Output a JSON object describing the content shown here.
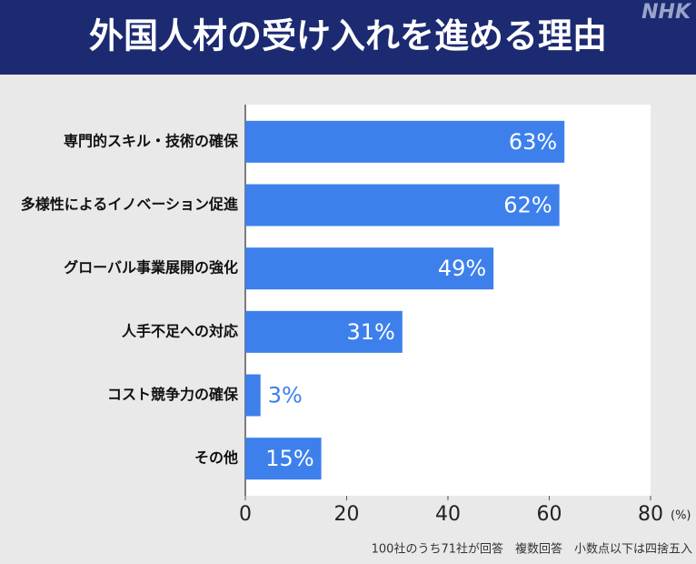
{
  "header": {
    "title": "外国人材の受け入れを進める理由",
    "logo": "NHK"
  },
  "chart_data": {
    "type": "barh",
    "categories": [
      "専門的スキル・技術の確保",
      "多様性によるイノベーション促進",
      "グローバル事業展開の強化",
      "人手不足への対応",
      "コスト競争力の確保",
      "その他"
    ],
    "values": [
      63,
      62,
      49,
      31,
      3,
      15
    ],
    "value_labels": [
      "63%",
      "62%",
      "49%",
      "31%",
      "3%",
      "15%"
    ],
    "color": "#3d80ec",
    "xlim": [
      0,
      80
    ],
    "xticks": [
      0,
      20,
      40,
      60,
      80
    ],
    "xlabel": "(%)"
  },
  "footnote": "100社のうち71社が回答　複数回答　小数点以下は四捨五入"
}
